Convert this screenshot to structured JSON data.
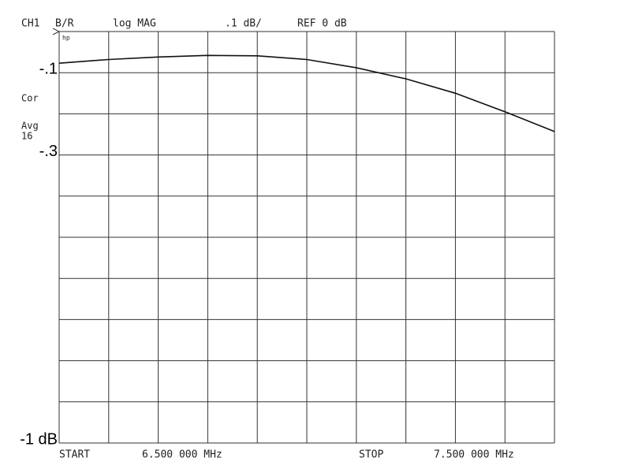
{
  "chart_data": {
    "type": "line",
    "header": {
      "channel": "CH1",
      "measurement": "B/R",
      "format": "log MAG",
      "scale": ".1 dB/",
      "reference": "REF 0 dB"
    },
    "annotations": {
      "logo": "hp",
      "correction": "Cor",
      "averaging": "Avg",
      "avg_factor": "16"
    },
    "footer": {
      "start_label": "START",
      "start_value": "6.500 000 MHz",
      "stop_label": "STOP",
      "stop_value": "7.500 000 MHz"
    },
    "x": [
      6.5,
      6.6,
      6.7,
      6.8,
      6.9,
      7.0,
      7.1,
      7.2,
      7.3,
      7.4,
      7.5
    ],
    "series": [
      {
        "color": "#111111",
        "values": [
          -0.077,
          -0.068,
          -0.062,
          -0.058,
          -0.059,
          -0.068,
          -0.088,
          -0.115,
          -0.15,
          -0.195,
          -0.243
        ]
      }
    ],
    "xlim": [
      6.5,
      7.5
    ],
    "ylim": [
      -1,
      0
    ],
    "xticks": [
      {
        "value": 6.5,
        "label": null
      },
      {
        "value": 6.6,
        "label": null
      },
      {
        "value": 6.7,
        "label": null
      },
      {
        "value": 6.8,
        "label": null
      },
      {
        "value": 6.9,
        "label": null
      },
      {
        "value": 7.0,
        "label": null
      },
      {
        "value": 7.1,
        "label": null
      },
      {
        "value": 7.2,
        "label": null
      },
      {
        "value": 7.3,
        "label": null
      },
      {
        "value": 7.4,
        "label": null
      },
      {
        "value": 7.5,
        "label": null
      }
    ],
    "yticks": [
      {
        "value": 0,
        "label": null
      },
      {
        "value": -0.1,
        "label": "-.1"
      },
      {
        "value": -0.2,
        "label": null
      },
      {
        "value": -0.3,
        "label": "-.3"
      },
      {
        "value": -0.4,
        "label": null
      },
      {
        "value": -0.5,
        "label": null
      },
      {
        "value": -0.6,
        "label": null
      },
      {
        "value": -0.7,
        "label": null
      },
      {
        "value": -0.8,
        "label": null
      },
      {
        "value": -0.9,
        "label": null
      },
      {
        "value": -1,
        "label": "-1 dB"
      }
    ],
    "grid": true
  }
}
